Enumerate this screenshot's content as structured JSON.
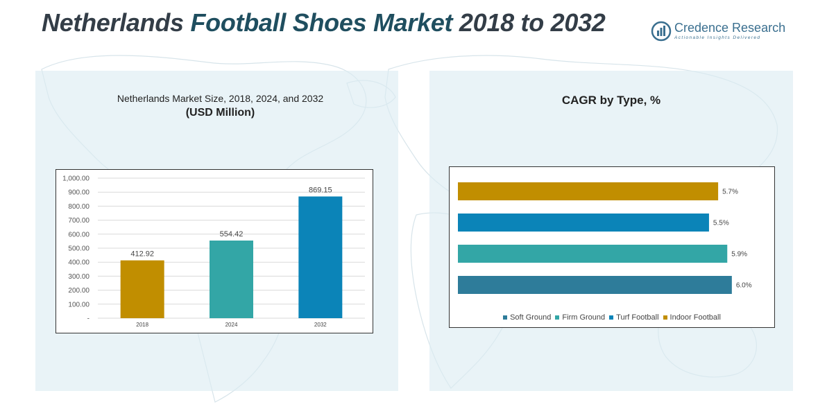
{
  "header": {
    "title_part1": "Netherlands ",
    "title_part2": "Football Shoes Market",
    "title_part3": " 2018 to 2032"
  },
  "logo": {
    "name_a": "Credence",
    "name_b": " Research",
    "tagline": "Actionable Insights Delivered"
  },
  "colors": {
    "gold": "#C18E00",
    "teal": "#33A6A6",
    "blue": "#0B84B8",
    "steel": "#2E7C9A"
  },
  "left_panel": {
    "title_line1": "Netherlands Market Size, 2018, 2024, and 2032",
    "title_line2": "(USD Million)"
  },
  "right_panel": {
    "title": "CAGR by Type, %"
  },
  "chart_data": [
    {
      "type": "bar",
      "title": "Netherlands Market Size, 2018, 2024, and 2032 (USD Million)",
      "categories": [
        "2018",
        "2024",
        "2032"
      ],
      "values": [
        412.92,
        554.42,
        869.15
      ],
      "value_labels": [
        "412.92",
        "554.42",
        "869.15"
      ],
      "bar_colors": [
        "#C18E00",
        "#33A6A6",
        "#0B84B8"
      ],
      "ylim": [
        0,
        1000
      ],
      "yticks": [
        0,
        100,
        200,
        300,
        400,
        500,
        600,
        700,
        800,
        900,
        1000
      ],
      "ytick_labels": [
        "-",
        "100.00",
        "200.00",
        "300.00",
        "400.00",
        "500.00",
        "600.00",
        "700.00",
        "800.00",
        "900.00",
        "1,000.00"
      ],
      "grid": true
    },
    {
      "type": "bar",
      "orientation": "horizontal",
      "title": "CAGR by Type, %",
      "categories": [
        "Indoor Football",
        "Turf Football",
        "Firm Ground",
        "Soft Ground"
      ],
      "values": [
        5.7,
        5.5,
        5.9,
        6.0
      ],
      "value_labels": [
        "5.7%",
        "5.5%",
        "5.9%",
        "6.0%"
      ],
      "bar_colors": [
        "#C18E00",
        "#0B84B8",
        "#33A6A6",
        "#2E7C9A"
      ],
      "xlim": [
        0,
        6.2
      ],
      "legend": {
        "position": "bottom",
        "entries": [
          "Soft Ground",
          "Firm Ground",
          "Turf Football",
          "Indoor Football"
        ],
        "colors": [
          "#2E7C9A",
          "#33A6A6",
          "#0B84B8",
          "#C18E00"
        ]
      }
    }
  ]
}
